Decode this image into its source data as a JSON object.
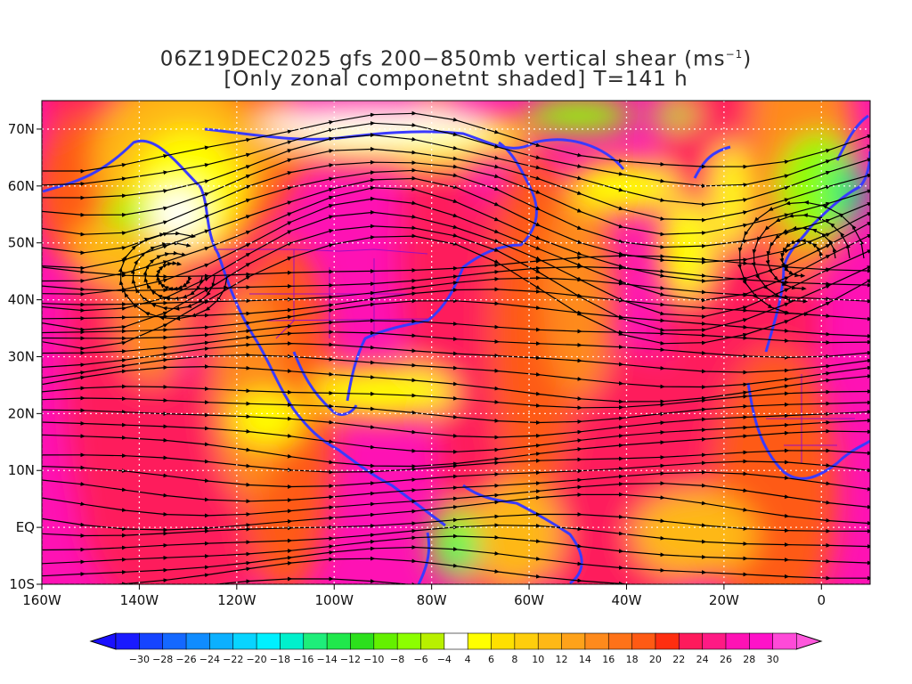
{
  "title": {
    "line1_prefix": "06Z19DEC2025 gfs 200−850mb vertical shear (ms",
    "line1_exp": "−1",
    "line1_suffix": ")",
    "line2": "[Only zonal componetnt shaded] T=141 h"
  },
  "map": {
    "lon_range": [
      -160,
      10
    ],
    "lat_range": [
      -10,
      75
    ],
    "x_ticks": [
      {
        "value": -160,
        "label": "160W"
      },
      {
        "value": -140,
        "label": "140W"
      },
      {
        "value": -120,
        "label": "120W"
      },
      {
        "value": -100,
        "label": "100W"
      },
      {
        "value": -80,
        "label": "80W"
      },
      {
        "value": -60,
        "label": "60W"
      },
      {
        "value": -40,
        "label": "40W"
      },
      {
        "value": -20,
        "label": "20W"
      },
      {
        "value": 0,
        "label": "0"
      }
    ],
    "y_ticks": [
      {
        "value": 70,
        "label": "70N"
      },
      {
        "value": 60,
        "label": "60N"
      },
      {
        "value": 50,
        "label": "50N"
      },
      {
        "value": 40,
        "label": "40N"
      },
      {
        "value": 30,
        "label": "30N"
      },
      {
        "value": 20,
        "label": "20N"
      },
      {
        "value": 10,
        "label": "10N"
      },
      {
        "value": 0,
        "label": "EQ"
      },
      {
        "value": -10,
        "label": "10S"
      }
    ],
    "grid": true,
    "field_colors": {
      "strong_shear": "#fe12b4",
      "high_shear": "#fe1a5c",
      "moderate_shear": "#fe5a14",
      "medium_shear": "#fe8a1c",
      "low_shear": "#feb816",
      "weak_shear": "#ffff00",
      "neutral": "#ffffff",
      "easterly": "#8cff00",
      "strong_easterly": "#1eee7a",
      "coastline": "#3a3aff",
      "borders": "#9a0fbf",
      "streamlines": "#000000"
    }
  },
  "colorbar": {
    "labels": [
      "−30",
      "−28",
      "−26",
      "−24",
      "−22",
      "−20",
      "−18",
      "−16",
      "−14",
      "−12",
      "−10",
      "−8",
      "−6",
      "−4",
      "4",
      "6",
      "8",
      "10",
      "12",
      "14",
      "16",
      "18",
      "20",
      "22",
      "24",
      "26",
      "28",
      "30"
    ],
    "colors": [
      "#1a1aff",
      "#1644ff",
      "#1468ff",
      "#108cff",
      "#0cb0ff",
      "#08d4ff",
      "#00f0ff",
      "#00f0cc",
      "#1eee7a",
      "#20e84c",
      "#2ce01c",
      "#64f000",
      "#8cff00",
      "#b8f000",
      "#ffffff",
      "#ffff00",
      "#fee000",
      "#fece0c",
      "#feb816",
      "#fea21a",
      "#fe8a1c",
      "#fe7218",
      "#fe5a14",
      "#fe2e10",
      "#fe1a5c",
      "#fe1a84",
      "#fe12b4",
      "#fe12c8",
      "#fe4ad8"
    ],
    "low_arrow_color": "#1a10ff",
    "high_arrow_color": "#fe58dc"
  }
}
